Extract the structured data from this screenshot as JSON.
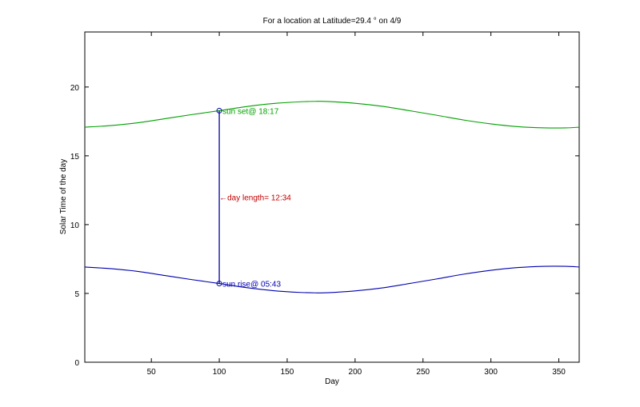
{
  "chart_data": {
    "type": "line",
    "title": "For a location at Latitude=29.4 °  on 4/9",
    "xlabel": "Day",
    "ylabel": "Solar Time of the day",
    "xlim": [
      1,
      365
    ],
    "ylim": [
      0,
      24
    ],
    "xticks": [
      50,
      100,
      150,
      200,
      250,
      300,
      350
    ],
    "yticks": [
      0,
      5,
      10,
      15,
      20
    ],
    "grid": false,
    "colors": {
      "sunset": "#00a000",
      "sunrise": "#0000b0",
      "marker": "#0000a0",
      "day_length": "#c00000",
      "axis": "#000000"
    },
    "series": [
      {
        "x": [
          1,
          20,
          40,
          60,
          80,
          100,
          120,
          140,
          160,
          172,
          180,
          200,
          220,
          240,
          260,
          280,
          300,
          320,
          340,
          355,
          365
        ],
        "values": [
          17.08,
          17.2,
          17.4,
          17.7,
          18.0,
          18.28,
          18.58,
          18.8,
          18.93,
          18.96,
          18.95,
          18.82,
          18.6,
          18.28,
          17.95,
          17.6,
          17.32,
          17.12,
          17.03,
          17.03,
          17.08
        ]
      },
      {
        "x": [
          1,
          20,
          40,
          60,
          80,
          100,
          120,
          140,
          160,
          172,
          180,
          200,
          220,
          240,
          260,
          280,
          300,
          320,
          340,
          355,
          365
        ],
        "values": [
          6.92,
          6.8,
          6.6,
          6.3,
          6.0,
          5.72,
          5.42,
          5.2,
          5.07,
          5.04,
          5.05,
          5.18,
          5.4,
          5.72,
          6.05,
          6.4,
          6.68,
          6.88,
          6.97,
          6.97,
          6.92
        ]
      }
    ],
    "highlight": {
      "day": 100,
      "sunrise": 5.72,
      "sunset": 18.28
    },
    "annotations": {
      "sunset": "sun set@ 18:17",
      "sunrise": "sun rise@ 05:43",
      "day_length": "←day length= 12:34"
    }
  }
}
